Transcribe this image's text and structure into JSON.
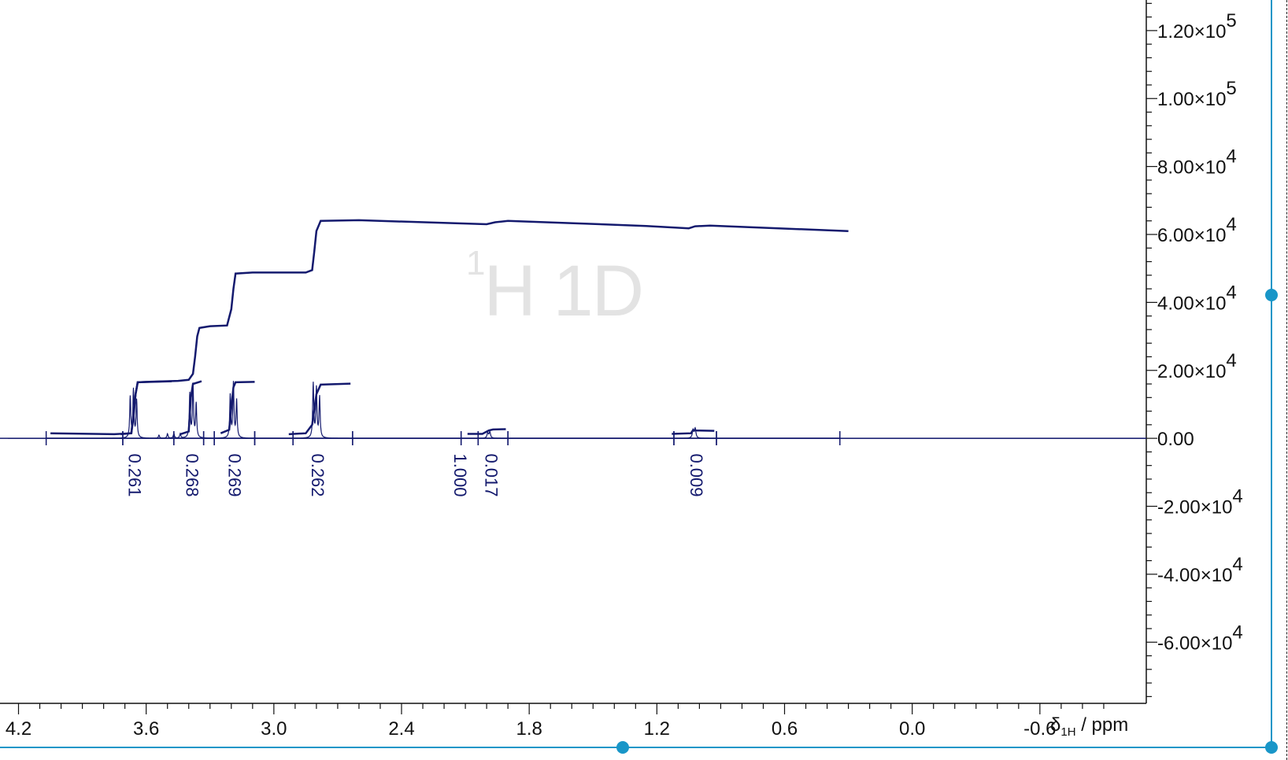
{
  "chart_data": {
    "type": "line",
    "watermark": "1H 1D",
    "watermark_super": "1",
    "watermark_main": "H 1D",
    "xlabel_symbol": "δ",
    "xlabel_sub": "1H",
    "xlabel_rest": " / ppm",
    "xlim": [
      4.25,
      -1.1
    ],
    "ylim": [
      -78000,
      129000
    ],
    "x_reversed": true,
    "x_ticks": [
      {
        "value": 4.2,
        "label": "4.2"
      },
      {
        "value": 3.6,
        "label": "3.6"
      },
      {
        "value": 3.0,
        "label": "3.0"
      },
      {
        "value": 2.4,
        "label": "2.4"
      },
      {
        "value": 1.8,
        "label": "1.8"
      },
      {
        "value": 1.2,
        "label": "1.2"
      },
      {
        "value": 0.6,
        "label": "0.6"
      },
      {
        "value": 0.0,
        "label": "0.0"
      },
      {
        "value": -0.6,
        "label": "-0.6"
      }
    ],
    "y_ticks": [
      {
        "value": 120000,
        "mant": "1.20×10",
        "exp": "5"
      },
      {
        "value": 100000,
        "mant": "1.00×10",
        "exp": "5"
      },
      {
        "value": 80000,
        "mant": "8.00×10",
        "exp": "4"
      },
      {
        "value": 60000,
        "mant": "6.00×10",
        "exp": "4"
      },
      {
        "value": 40000,
        "mant": "4.00×10",
        "exp": "4"
      },
      {
        "value": 20000,
        "mant": "2.00×10",
        "exp": "4"
      },
      {
        "value": 0,
        "mant": "0.00",
        "exp": ""
      },
      {
        "value": -20000,
        "mant": "-2.00×10",
        "exp": "4"
      },
      {
        "value": -40000,
        "mant": "-4.00×10",
        "exp": "4"
      },
      {
        "value": -60000,
        "mant": "-6.00×10",
        "exp": "4"
      }
    ],
    "integral_curve": [
      [
        4.05,
        1500
      ],
      [
        3.75,
        1200
      ],
      [
        3.67,
        1500
      ],
      [
        3.66,
        6000
      ],
      [
        3.65,
        13000
      ],
      [
        3.64,
        16500
      ],
      [
        3.6,
        16600
      ],
      [
        3.45,
        16900
      ],
      [
        3.4,
        17200
      ],
      [
        3.38,
        19000
      ],
      [
        3.37,
        24000
      ],
      [
        3.36,
        30000
      ],
      [
        3.35,
        32500
      ],
      [
        3.3,
        33000
      ],
      [
        3.22,
        33200
      ],
      [
        3.2,
        38000
      ],
      [
        3.19,
        44000
      ],
      [
        3.18,
        48500
      ],
      [
        3.1,
        48800
      ],
      [
        2.85,
        48800
      ],
      [
        2.82,
        49500
      ],
      [
        2.81,
        55000
      ],
      [
        2.8,
        61000
      ],
      [
        2.78,
        64000
      ],
      [
        2.6,
        64200
      ],
      [
        2.0,
        63000
      ],
      [
        1.96,
        63600
      ],
      [
        1.9,
        64000
      ],
      [
        1.25,
        62500
      ],
      [
        1.05,
        61800
      ],
      [
        1.02,
        62400
      ],
      [
        0.95,
        62600
      ],
      [
        0.3,
        61000
      ]
    ],
    "local_integrals": [
      {
        "points": [
          [
            3.72,
            1200
          ],
          [
            3.67,
            1500
          ],
          [
            3.65,
            13000
          ],
          [
            3.64,
            16500
          ],
          [
            3.48,
            16800
          ]
        ]
      },
      {
        "points": [
          [
            3.44,
            1200
          ],
          [
            3.4,
            2000
          ],
          [
            3.39,
            12000
          ],
          [
            3.38,
            16000
          ],
          [
            3.34,
            16800
          ]
        ]
      },
      {
        "points": [
          [
            3.25,
            1500
          ],
          [
            3.21,
            2500
          ],
          [
            3.2,
            9000
          ],
          [
            3.19,
            15000
          ],
          [
            3.18,
            16500
          ],
          [
            3.09,
            16600
          ]
        ]
      },
      {
        "points": [
          [
            2.93,
            1200
          ],
          [
            2.85,
            1500
          ],
          [
            2.82,
            4000
          ],
          [
            2.8,
            13000
          ],
          [
            2.78,
            15800
          ],
          [
            2.64,
            16100
          ]
        ]
      },
      {
        "points": [
          [
            2.09,
            1300
          ],
          [
            2.02,
            1300
          ],
          [
            1.99,
            2300
          ],
          [
            1.97,
            2600
          ],
          [
            1.91,
            2700
          ]
        ]
      },
      {
        "points": [
          [
            1.13,
            1300
          ],
          [
            1.04,
            1500
          ],
          [
            1.03,
            2400
          ],
          [
            1.01,
            2300
          ],
          [
            0.93,
            2200
          ]
        ]
      }
    ],
    "spectrum_peaks": [
      {
        "ppm": 3.675,
        "height": 12000,
        "width": 0.003
      },
      {
        "ppm": 3.66,
        "height": 14000,
        "width": 0.003
      },
      {
        "ppm": 3.645,
        "height": 11000,
        "width": 0.003
      },
      {
        "ppm": 3.395,
        "height": 13000,
        "width": 0.003
      },
      {
        "ppm": 3.38,
        "height": 15500,
        "width": 0.003
      },
      {
        "ppm": 3.365,
        "height": 10000,
        "width": 0.003
      },
      {
        "ppm": 3.205,
        "height": 12500,
        "width": 0.003
      },
      {
        "ppm": 3.19,
        "height": 16000,
        "width": 0.003
      },
      {
        "ppm": 3.175,
        "height": 11000,
        "width": 0.003
      },
      {
        "ppm": 2.815,
        "height": 16000,
        "width": 0.003
      },
      {
        "ppm": 2.8,
        "height": 14500,
        "width": 0.003
      },
      {
        "ppm": 2.785,
        "height": 12000,
        "width": 0.003
      },
      {
        "ppm": 1.995,
        "height": 1500,
        "width": 0.004
      },
      {
        "ppm": 1.985,
        "height": 1800,
        "width": 0.004
      },
      {
        "ppm": 1.03,
        "height": 2400,
        "width": 0.004
      },
      {
        "ppm": 1.02,
        "height": 2800,
        "width": 0.004
      },
      {
        "ppm": 3.54,
        "height": 900,
        "width": 0.003
      },
      {
        "ppm": 3.5,
        "height": 1300,
        "width": 0.003
      },
      {
        "ppm": 3.47,
        "height": 1400,
        "width": 0.003
      },
      {
        "ppm": 3.44,
        "height": 1300,
        "width": 0.003
      }
    ],
    "integration_ranges": [
      {
        "from": 4.07,
        "to": 3.71
      },
      {
        "from": 3.71,
        "to": 3.47
      },
      {
        "from": 3.47,
        "to": 3.33
      },
      {
        "from": 3.33,
        "to": 3.28
      },
      {
        "from": 3.28,
        "to": 3.09
      },
      {
        "from": 3.09,
        "to": 2.91
      },
      {
        "from": 2.91,
        "to": 2.63
      },
      {
        "from": 2.63,
        "to": 2.12
      },
      {
        "from": 2.12,
        "to": 2.04
      },
      {
        "from": 2.04,
        "to": 1.9
      },
      {
        "from": 1.9,
        "to": 1.12
      },
      {
        "from": 1.12,
        "to": 0.92
      },
      {
        "from": 0.92,
        "to": 0.34
      }
    ],
    "integral_labels": [
      {
        "ppm": 3.66,
        "label": "0.261"
      },
      {
        "ppm": 3.39,
        "label": "0.268"
      },
      {
        "ppm": 3.19,
        "label": "0.269"
      },
      {
        "ppm": 2.8,
        "label": "0.262"
      },
      {
        "ppm": 2.13,
        "label": "1.000"
      },
      {
        "ppm": 1.985,
        "label": "0.017"
      },
      {
        "ppm": 1.02,
        "label": "0.009"
      }
    ],
    "colors": {
      "spectrum": "#141a6e",
      "axis": "#111111",
      "handle": "#1996c8",
      "watermark": "#e3e3e3"
    }
  }
}
